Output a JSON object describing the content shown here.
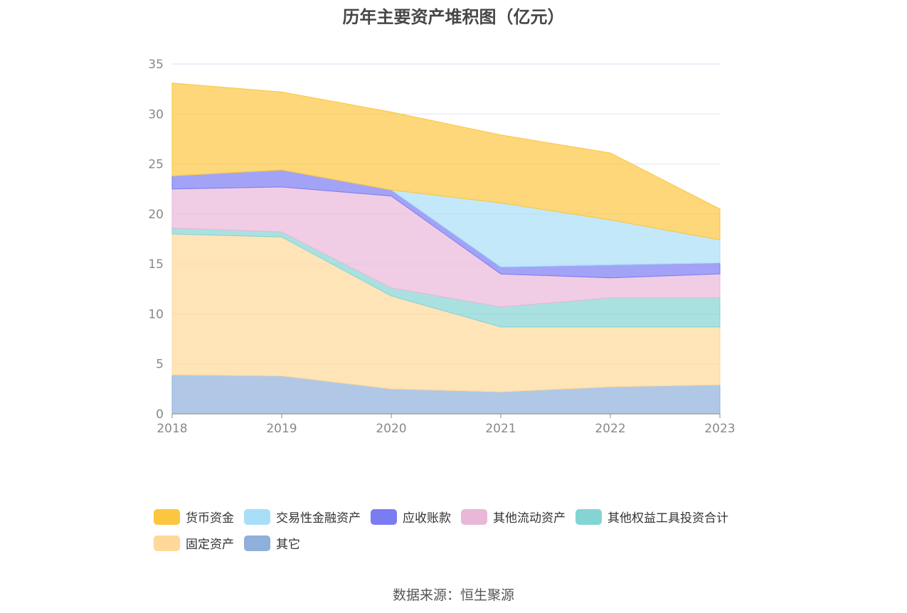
{
  "chart_data": {
    "type": "area",
    "stacked": true,
    "title": "历年主要资产堆积图（亿元）",
    "x": [
      "2018",
      "2019",
      "2020",
      "2021",
      "2022",
      "2023"
    ],
    "ylim": [
      0,
      35
    ],
    "yticks": [
      0,
      5,
      10,
      15,
      20,
      25,
      30,
      35
    ],
    "grid": true,
    "legend_position": "bottom",
    "series": [
      {
        "name": "其它",
        "color": "#8fb0db",
        "values": [
          3.9,
          3.8,
          2.5,
          2.2,
          2.7,
          2.9
        ]
      },
      {
        "name": "固定资产",
        "color": "#ffd89a",
        "values": [
          14.1,
          13.9,
          9.3,
          6.5,
          6.0,
          5.8
        ]
      },
      {
        "name": "其他权益工具投资合计",
        "color": "#85d4d4",
        "values": [
          0.6,
          0.5,
          0.8,
          2.0,
          2.9,
          2.9
        ]
      },
      {
        "name": "其他流动资产",
        "color": "#e9b8d8",
        "values": [
          3.9,
          4.5,
          9.2,
          3.3,
          2.0,
          2.4
        ]
      },
      {
        "name": "应收账款",
        "color": "#7a7cf2",
        "values": [
          1.3,
          1.7,
          0.6,
          0.7,
          1.3,
          1.1
        ]
      },
      {
        "name": "交易性金融资产",
        "color": "#a9def8",
        "values": [
          0.0,
          0.0,
          0.0,
          6.4,
          4.5,
          2.3
        ]
      },
      {
        "name": "货币资金",
        "color": "#fcc640",
        "values": [
          9.3,
          7.8,
          7.8,
          6.8,
          6.7,
          3.1
        ]
      }
    ]
  },
  "legend": {
    "row1": [
      {
        "label": "货币资金",
        "color": "#fcc640"
      },
      {
        "label": "交易性金融资产",
        "color": "#a9def8"
      },
      {
        "label": "应收账款",
        "color": "#7a7cf2"
      },
      {
        "label": "其他流动资产",
        "color": "#e9b8d8"
      },
      {
        "label": "其他权益工具投资合计",
        "color": "#85d4d4"
      }
    ],
    "row2": [
      {
        "label": "固定资产",
        "color": "#ffd89a"
      },
      {
        "label": "其它",
        "color": "#8fb0db"
      }
    ]
  },
  "source": "数据来源：恒生聚源"
}
